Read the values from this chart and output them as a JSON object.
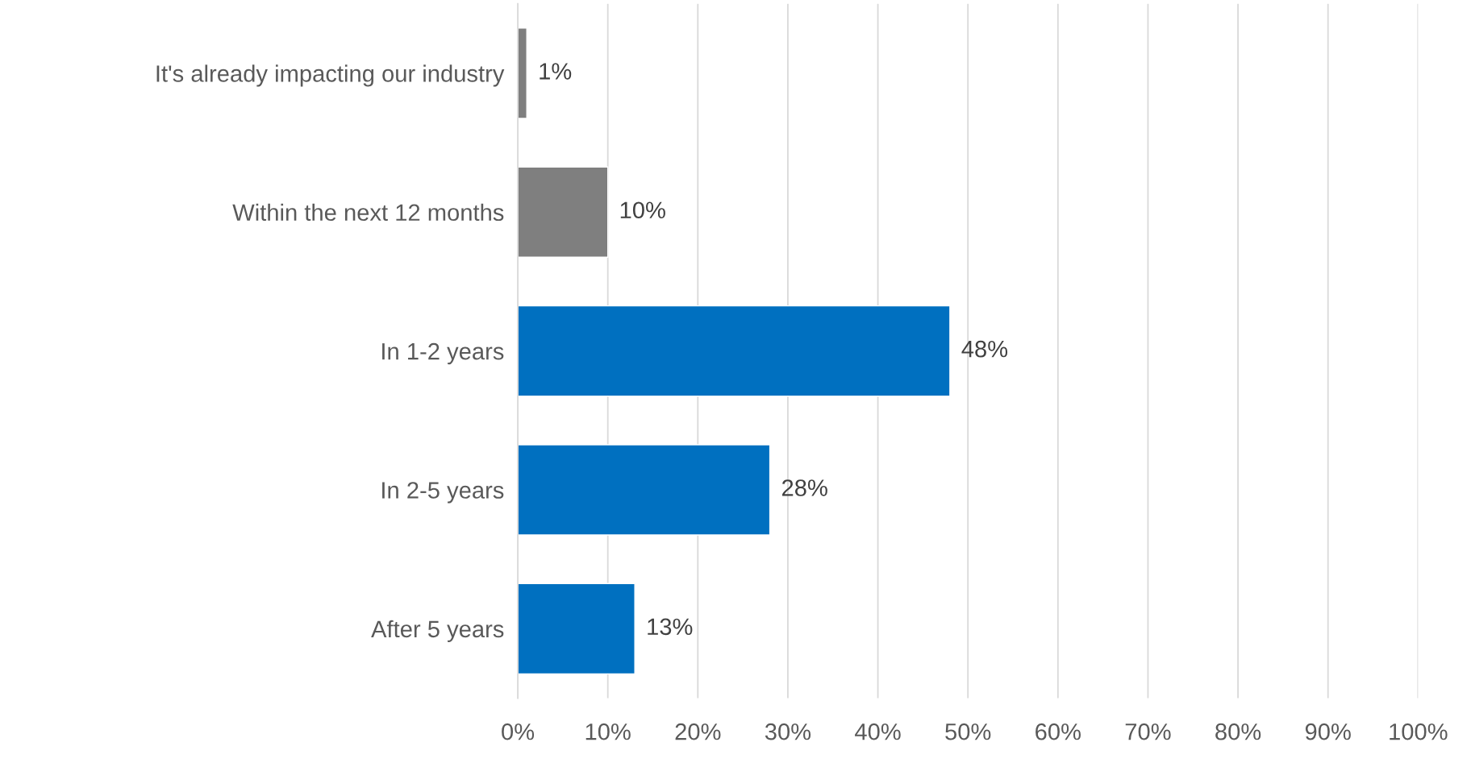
{
  "chart_data": {
    "type": "bar",
    "orientation": "horizontal",
    "categories": [
      "It's already impacting our industry",
      "Within the next 12 months",
      "In 1-2 years",
      "In 2-5 years",
      "After 5 years"
    ],
    "values": [
      1,
      10,
      48,
      28,
      13
    ],
    "colors": [
      "#7f7f7f",
      "#7f7f7f",
      "#0070c0",
      "#0070c0",
      "#0070c0"
    ],
    "value_labels": [
      "1%",
      "10%",
      "48%",
      "28%",
      "13%"
    ],
    "xlim": [
      0,
      100
    ],
    "xticks": [
      {
        "value": 0,
        "label": "0%"
      },
      {
        "value": 10,
        "label": "10%"
      },
      {
        "value": 20,
        "label": "20%"
      },
      {
        "value": 30,
        "label": "30%"
      },
      {
        "value": 40,
        "label": "40%"
      },
      {
        "value": 50,
        "label": "50%"
      },
      {
        "value": 60,
        "label": "60%"
      },
      {
        "value": 70,
        "label": "70%"
      },
      {
        "value": 80,
        "label": "80%"
      },
      {
        "value": 90,
        "label": "90%"
      },
      {
        "value": 100,
        "label": "100%"
      }
    ],
    "grid": "x",
    "legend": false
  }
}
